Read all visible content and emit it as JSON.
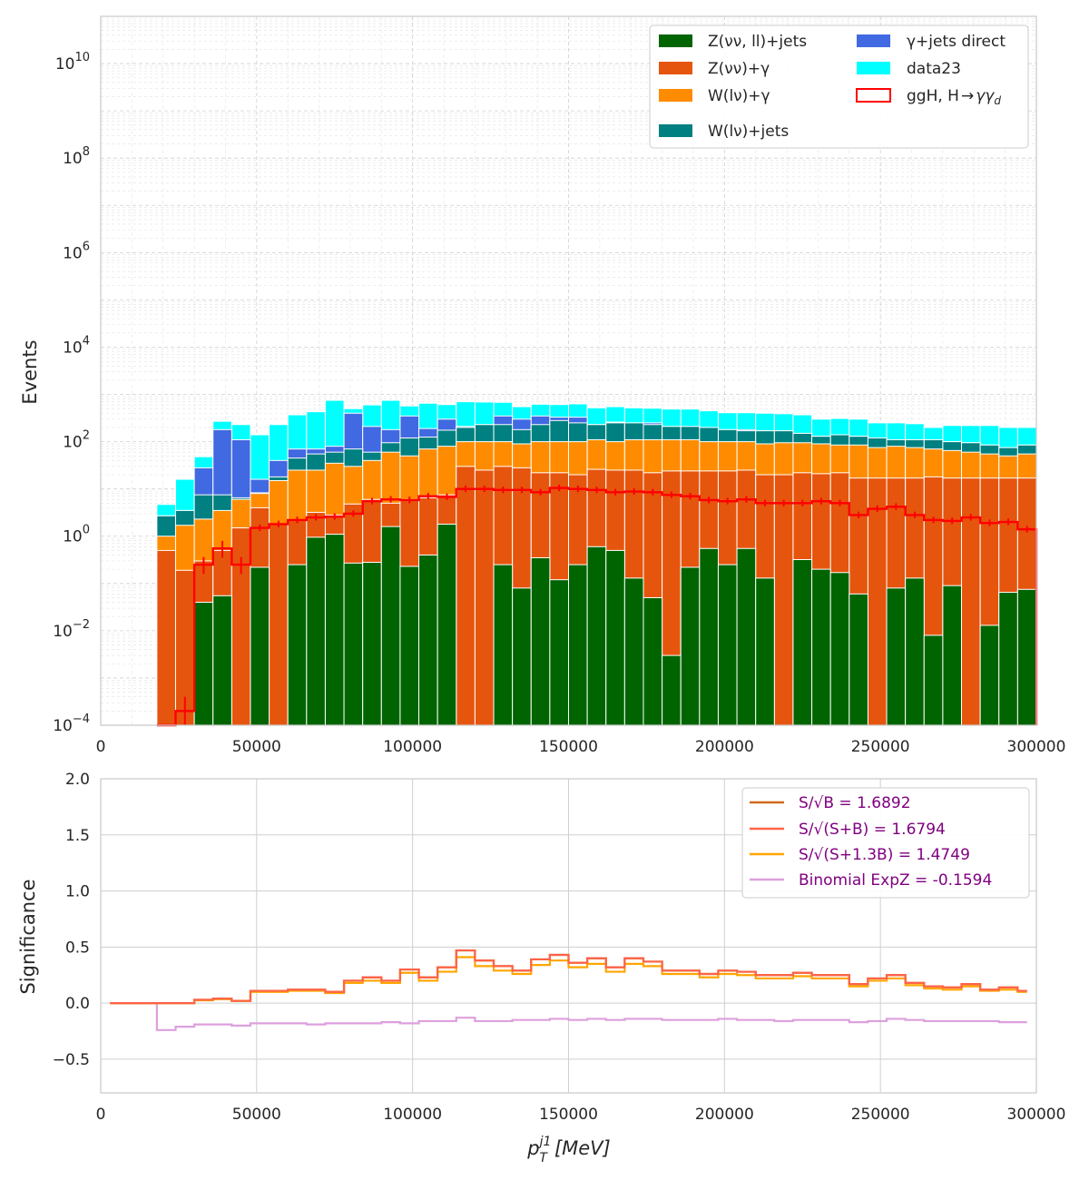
{
  "chart_data": [
    {
      "type": "bar",
      "stacked": true,
      "ylabel": "Events",
      "yscale": "log",
      "xlim": [
        0,
        300000
      ],
      "ylim": [
        0.0001,
        100000000000
      ],
      "grid": true,
      "legend_position": "top-right",
      "x_ticks": [
        "0",
        "50000",
        "100000",
        "150000",
        "200000",
        "250000",
        "300000"
      ],
      "y_ticks": [
        {
          "value": 0.0001,
          "base": "10",
          "exp": "−4"
        },
        {
          "value": 0.01,
          "base": "10",
          "exp": "−2"
        },
        {
          "value": 1,
          "base": "10",
          "exp": "0"
        },
        {
          "value": 100,
          "base": "10",
          "exp": "2"
        },
        {
          "value": 10000,
          "base": "10",
          "exp": "4"
        },
        {
          "value": 1000000,
          "base": "10",
          "exp": "6"
        },
        {
          "value": 100000000,
          "base": "10",
          "exp": "8"
        },
        {
          "value": 10000000000,
          "base": "10",
          "exp": "10"
        }
      ],
      "bin_edges": [
        18000,
        24000,
        30000,
        36000,
        42000,
        48000,
        54000,
        60000,
        66000,
        72000,
        78000,
        84000,
        90000,
        96000,
        102000,
        108000,
        114000,
        120000,
        126000,
        132000,
        138000,
        144000,
        150000,
        156000,
        162000,
        168000,
        174000,
        180000,
        186000,
        192000,
        198000,
        204000,
        210000,
        216000,
        222000,
        228000,
        234000,
        240000,
        246000,
        252000,
        258000,
        264000,
        270000,
        276000,
        282000,
        288000,
        294000,
        300000
      ],
      "stack_tops": {
        "Z(νν, ll)+jets": [
          0.0001,
          0.0001,
          0.04,
          0.055,
          0.0001,
          0.22,
          0.0001,
          0.25,
          0.95,
          1.1,
          0.27,
          0.28,
          1.6,
          0.23,
          0.4,
          1.8,
          0.0001,
          0.0001,
          0.25,
          0.08,
          0.35,
          0.12,
          0.25,
          0.6,
          0.5,
          0.13,
          0.05,
          0.003,
          0.22,
          0.55,
          0.25,
          0.55,
          0.13,
          0.0001,
          0.32,
          0.2,
          0.17,
          0.06,
          0.0001,
          0.08,
          0.13,
          0.008,
          0.09,
          0.0001,
          0.013,
          0.065,
          0.075
        ],
        "Z(νν)+γ": [
          0.5,
          0.19,
          0.3,
          0.5,
          1.5,
          4,
          1.8,
          2.2,
          3.2,
          2.8,
          4.8,
          6,
          5,
          6,
          6.5,
          7.5,
          30,
          25,
          30,
          28,
          22,
          22,
          20,
          26,
          25,
          25,
          22,
          24,
          24,
          24,
          24,
          25,
          20,
          20,
          22,
          21,
          22,
          17,
          17,
          17,
          17,
          18,
          17,
          17,
          17,
          17,
          17
        ],
        "W(lν)+γ": [
          1,
          1.7,
          2.3,
          3.5,
          6,
          8,
          15,
          25,
          25,
          35,
          30,
          40,
          60,
          50,
          70,
          80,
          100,
          100,
          100,
          90,
          100,
          100,
          100,
          110,
          100,
          110,
          110,
          110,
          110,
          100,
          100,
          100,
          90,
          95,
          95,
          90,
          85,
          85,
          75,
          80,
          75,
          70,
          65,
          60,
          55,
          50,
          55
        ],
        "W(lν)+jets": [
          2.7,
          3.5,
          7.5,
          7.5,
          6.5,
          8.3,
          18,
          45,
          55,
          60,
          70,
          60,
          95,
          120,
          125,
          175,
          200,
          230,
          230,
          180,
          230,
          280,
          250,
          230,
          250,
          250,
          230,
          210,
          210,
          200,
          180,
          170,
          170,
          170,
          150,
          130,
          140,
          130,
          120,
          110,
          110,
          110,
          100,
          95,
          85,
          75,
          85
        ],
        "γ+jets direct": [
          2.7,
          3.5,
          28,
          180,
          110,
          16,
          40,
          70,
          70,
          80,
          400,
          210,
          180,
          350,
          190,
          300,
          210,
          230,
          350,
          300,
          350,
          330,
          330,
          230,
          260,
          250,
          250,
          210,
          210,
          200,
          180,
          180,
          170,
          170,
          150,
          130,
          140,
          130,
          120,
          110,
          110,
          110,
          100,
          95,
          85,
          75,
          85
        ],
        "data23": [
          4.7,
          16,
          48,
          270,
          230,
          140,
          230,
          370,
          430,
          750,
          500,
          600,
          750,
          570,
          650,
          610,
          700,
          690,
          680,
          550,
          620,
          610,
          630,
          520,
          550,
          520,
          510,
          490,
          490,
          450,
          410,
          410,
          400,
          390,
          370,
          300,
          310,
          300,
          250,
          250,
          240,
          200,
          220,
          220,
          220,
          200,
          200
        ]
      },
      "signal": {
        "name": "ggH, H→γγ_d",
        "values": [
          0.0001,
          0.0002,
          0.25,
          0.55,
          0.25,
          1.5,
          1.8,
          2.2,
          2.5,
          2.6,
          3,
          5.5,
          6,
          5.8,
          7,
          6.8,
          10,
          10,
          9.5,
          9.5,
          8.5,
          10.5,
          10,
          9.5,
          8.5,
          8.8,
          8.5,
          7.5,
          7,
          5.8,
          5.5,
          6,
          5,
          5,
          5,
          5.5,
          5,
          2.8,
          3.8,
          4.2,
          2.8,
          2.2,
          2.1,
          2.5,
          1.9,
          2,
          1.4
        ]
      },
      "series": [
        {
          "name": "Z(νν, ll)+jets",
          "color": "#006400"
        },
        {
          "name": "Z(νν)+γ",
          "color": "#e6550d"
        },
        {
          "name": "W(lν)+γ",
          "color": "#ff8c00"
        },
        {
          "name": "W(lν)+jets",
          "color": "#008080"
        },
        {
          "name": "γ+jets direct",
          "color": "#4169e1"
        },
        {
          "name": "data23",
          "color": "#00ffff"
        },
        {
          "name": "ggH, H→γγ_d",
          "color": "#ff0000"
        }
      ]
    },
    {
      "type": "line",
      "drawstyle": "steps",
      "ylabel": "Significance",
      "xlim": [
        0,
        300000
      ],
      "ylim": [
        -0.8,
        2.0
      ],
      "grid": true,
      "legend_position": "top-right",
      "x_ticks": [
        "0",
        "50000",
        "100000",
        "150000",
        "200000",
        "250000",
        "300000"
      ],
      "y_ticks": [
        "2.0",
        "1.5",
        "1.0",
        "0.5",
        "0.0",
        "−0.5"
      ],
      "y_tick_values": [
        2.0,
        1.5,
        1.0,
        0.5,
        0.0,
        -0.5
      ],
      "bin_edges": [
        3000,
        18000,
        24000,
        30000,
        36000,
        42000,
        48000,
        54000,
        60000,
        66000,
        72000,
        78000,
        84000,
        90000,
        96000,
        102000,
        108000,
        114000,
        120000,
        126000,
        132000,
        138000,
        144000,
        150000,
        156000,
        162000,
        168000,
        174000,
        180000,
        186000,
        192000,
        198000,
        204000,
        210000,
        216000,
        222000,
        228000,
        234000,
        240000,
        246000,
        252000,
        258000,
        264000,
        270000,
        276000,
        282000,
        288000,
        294000,
        297000
      ],
      "series": [
        {
          "name": "S/√B = 1.6892",
          "color": "#d2691e",
          "values": [
            0,
            0,
            0,
            0.03,
            0.04,
            0.02,
            0.11,
            0.11,
            0.12,
            0.12,
            0.1,
            0.2,
            0.23,
            0.2,
            0.3,
            0.23,
            0.32,
            0.47,
            0.38,
            0.33,
            0.29,
            0.39,
            0.43,
            0.36,
            0.4,
            0.32,
            0.4,
            0.37,
            0.29,
            0.29,
            0.26,
            0.29,
            0.28,
            0.25,
            0.25,
            0.27,
            0.25,
            0.25,
            0.17,
            0.22,
            0.25,
            0.18,
            0.15,
            0.14,
            0.17,
            0.12,
            0.14,
            0.11
          ]
        },
        {
          "name": "S/√(S+B) = 1.6794",
          "color": "#ff6347",
          "values": [
            0,
            0,
            0,
            0.03,
            0.04,
            0.02,
            0.11,
            0.11,
            0.12,
            0.12,
            0.1,
            0.2,
            0.23,
            0.2,
            0.3,
            0.23,
            0.32,
            0.47,
            0.38,
            0.33,
            0.29,
            0.39,
            0.43,
            0.36,
            0.4,
            0.32,
            0.4,
            0.37,
            0.29,
            0.29,
            0.26,
            0.29,
            0.28,
            0.25,
            0.25,
            0.27,
            0.25,
            0.25,
            0.17,
            0.22,
            0.25,
            0.18,
            0.15,
            0.14,
            0.17,
            0.12,
            0.14,
            0.11
          ]
        },
        {
          "name": "S/√(S+1.3B) = 1.4749",
          "color": "#ffa500",
          "values": [
            0,
            0,
            0,
            0.025,
            0.035,
            0.02,
            0.1,
            0.1,
            0.11,
            0.11,
            0.09,
            0.18,
            0.2,
            0.18,
            0.27,
            0.2,
            0.28,
            0.41,
            0.33,
            0.29,
            0.26,
            0.34,
            0.38,
            0.32,
            0.35,
            0.28,
            0.35,
            0.33,
            0.26,
            0.26,
            0.23,
            0.26,
            0.25,
            0.22,
            0.22,
            0.24,
            0.22,
            0.22,
            0.15,
            0.2,
            0.22,
            0.16,
            0.13,
            0.12,
            0.15,
            0.11,
            0.12,
            0.1
          ]
        },
        {
          "name": "Binomial ExpZ = -0.1594",
          "color": "#dda0dd",
          "values": [
            0,
            -0.24,
            -0.21,
            -0.19,
            -0.19,
            -0.2,
            -0.18,
            -0.18,
            -0.18,
            -0.19,
            -0.18,
            -0.18,
            -0.18,
            -0.17,
            -0.18,
            -0.16,
            -0.16,
            -0.13,
            -0.16,
            -0.16,
            -0.15,
            -0.15,
            -0.14,
            -0.15,
            -0.14,
            -0.15,
            -0.14,
            -0.14,
            -0.15,
            -0.15,
            -0.15,
            -0.14,
            -0.15,
            -0.15,
            -0.16,
            -0.15,
            -0.15,
            -0.15,
            -0.17,
            -0.16,
            -0.14,
            -0.15,
            -0.16,
            -0.16,
            -0.16,
            -0.16,
            -0.17,
            -0.17
          ]
        }
      ]
    }
  ],
  "x_axis_label": {
    "base": "p",
    "sup": "j1",
    "sub": "T",
    "unit": "[MeV]"
  }
}
